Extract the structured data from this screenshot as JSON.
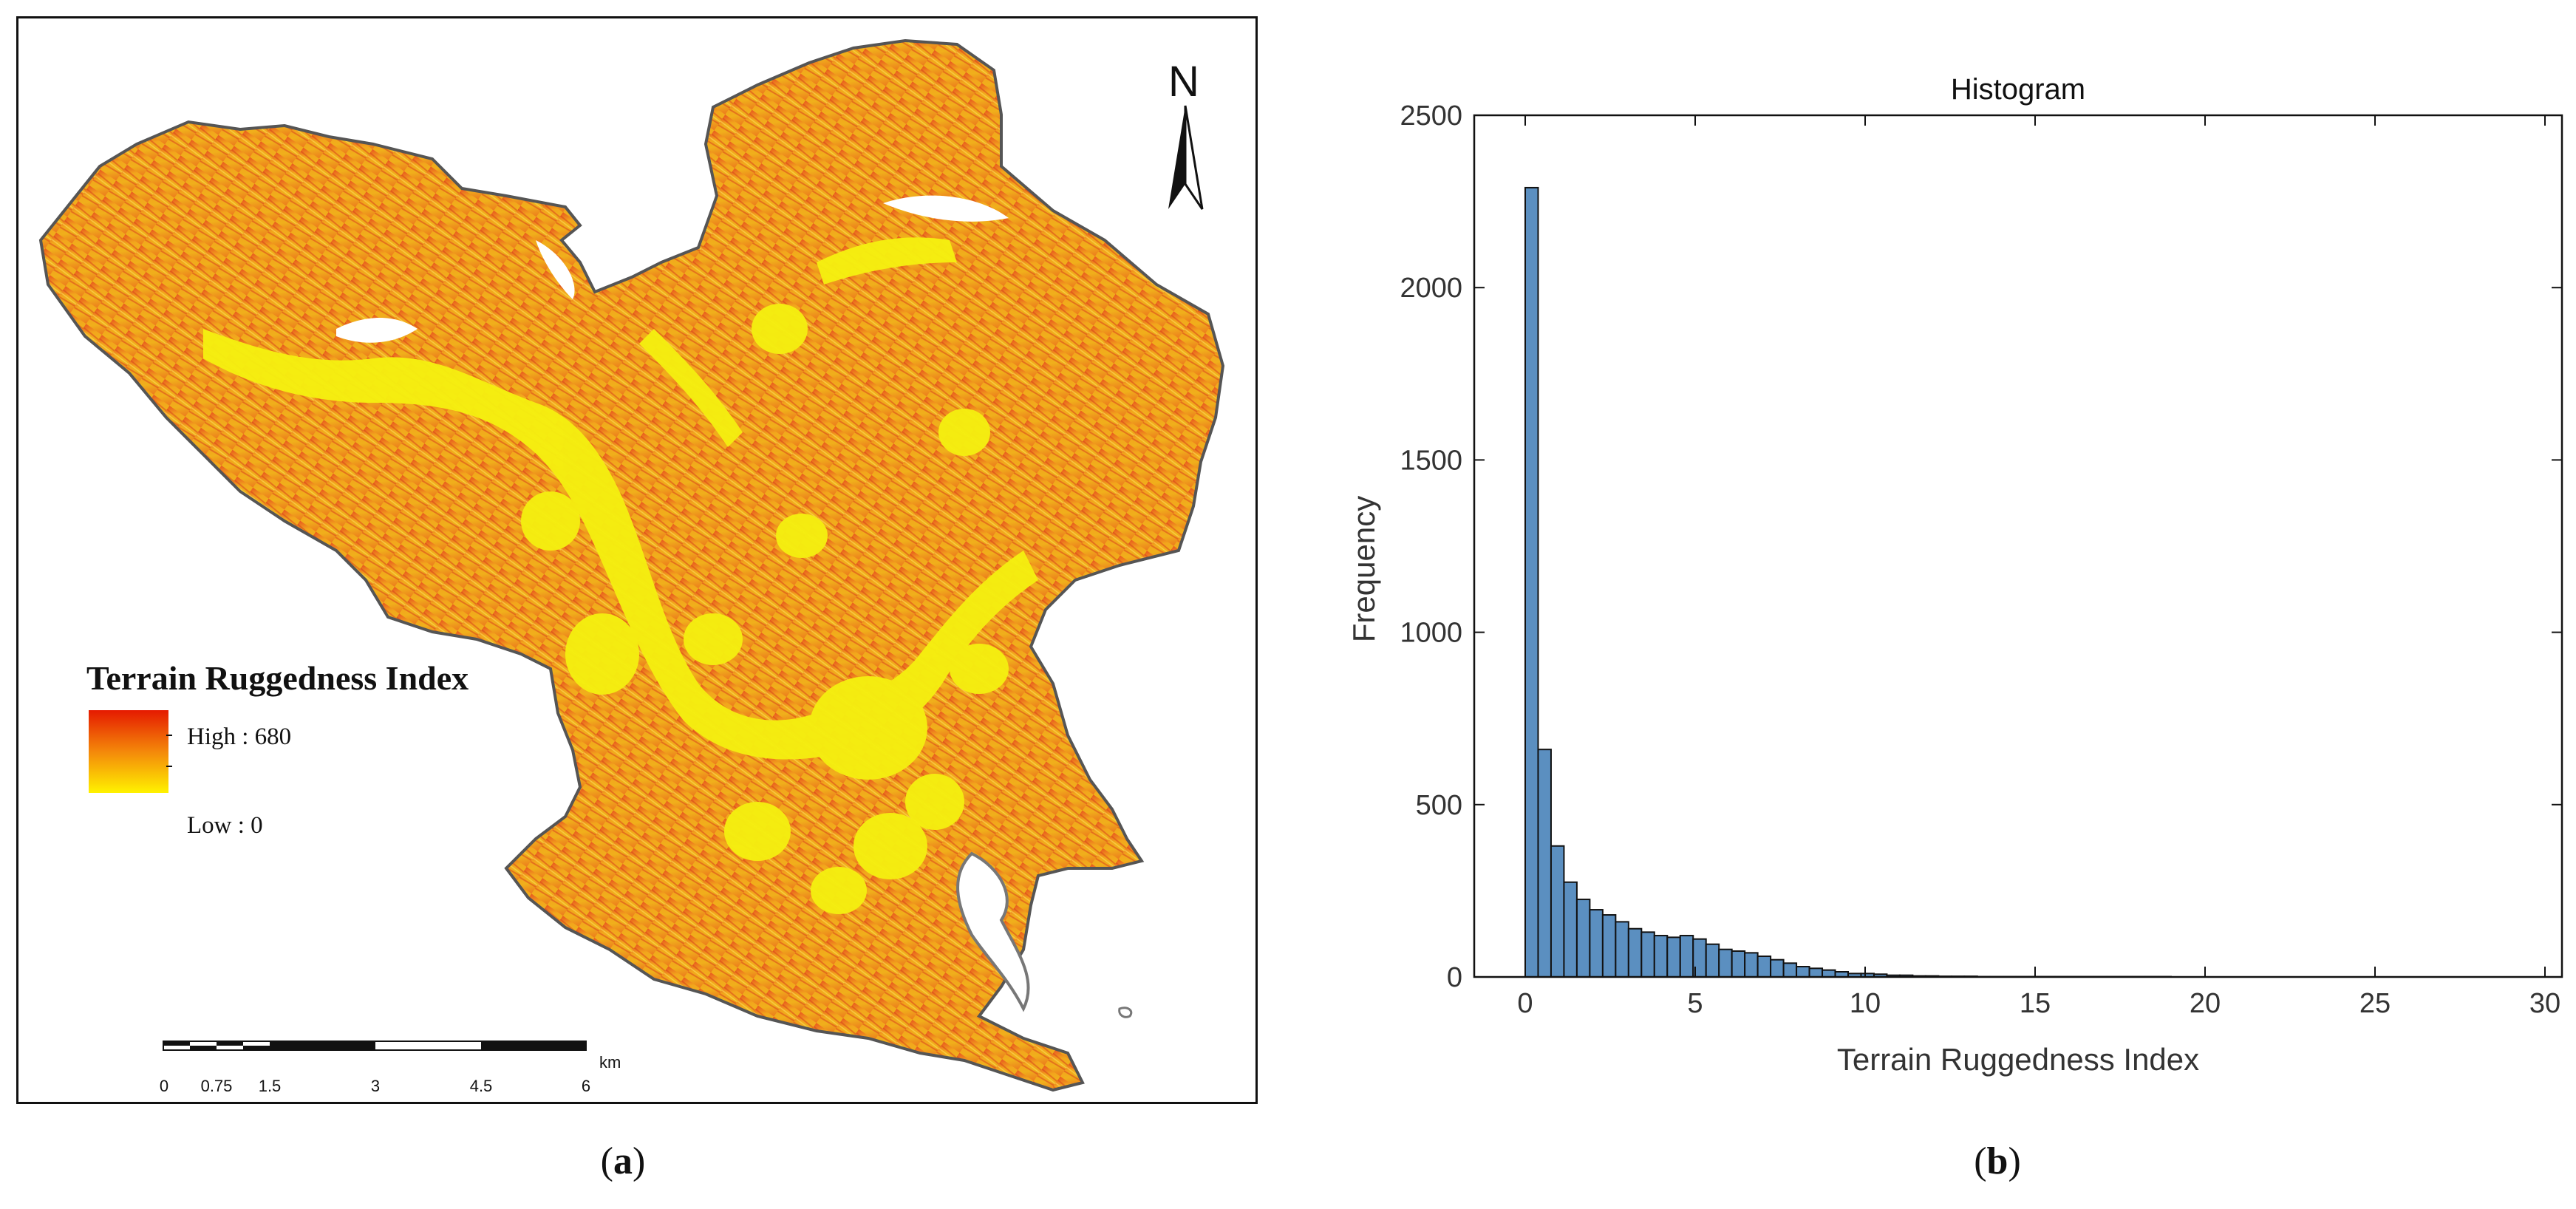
{
  "map": {
    "north_label": "N",
    "legend": {
      "title": "Terrain Ruggedness Index",
      "high_label": "High : 680",
      "low_label": "Low : 0",
      "high_color": "#e51a00",
      "low_color": "#fff200"
    },
    "scale_bar": {
      "unit": "km",
      "tick_labels": [
        "0",
        "0.75",
        "1.5",
        "3",
        "4.5",
        "6"
      ]
    },
    "colors": {
      "fill_low": "#f5ef10",
      "fill_mid": "#f3b21a",
      "fill_high": "#e5551e",
      "outline": "#555555"
    },
    "icons": [
      "north-arrow-icon"
    ]
  },
  "captions": {
    "left_prefix": "(",
    "left_letter": "a",
    "left_suffix": ")",
    "right_prefix": "(",
    "right_letter": "b",
    "right_suffix": ")"
  },
  "chart_data": {
    "type": "bar",
    "title": "Histogram",
    "xlabel": "Terrain Ruggedness Index",
    "ylabel": "Frequency",
    "xlim": [
      -1.5,
      30.5
    ],
    "ylim": [
      0,
      2500
    ],
    "xticks": [
      0,
      5,
      10,
      15,
      20,
      25,
      30
    ],
    "yticks": [
      0,
      500,
      1000,
      1500,
      2000,
      2500
    ],
    "bin_width": 0.38,
    "bin_start": 0,
    "values": [
      2290,
      660,
      380,
      275,
      225,
      195,
      180,
      160,
      140,
      130,
      120,
      115,
      120,
      110,
      95,
      80,
      75,
      70,
      60,
      50,
      40,
      30,
      25,
      20,
      15,
      10,
      10,
      8,
      5,
      5,
      3,
      3,
      2,
      2,
      2,
      1,
      1,
      1,
      1,
      1,
      1,
      1,
      1,
      1,
      1,
      1,
      1,
      1,
      1,
      1
    ],
    "bar_color": "#5b8fc0",
    "edge_color": "#111111",
    "grid": false
  }
}
